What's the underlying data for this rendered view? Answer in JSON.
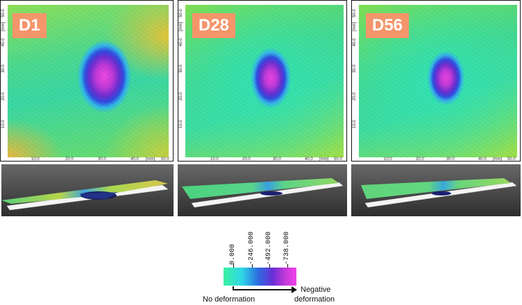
{
  "panels": [
    {
      "label": "D1",
      "y_ticks": [
        "50.0",
        "[mm]",
        "40.0",
        "30.0",
        "20.0",
        "10.0"
      ],
      "x_ticks": [
        "10.0",
        "20.0",
        "30.0",
        "40.0",
        "[mm]",
        "50.0"
      ]
    },
    {
      "label": "D28",
      "y_ticks": [
        "50.0",
        "[mm]",
        "40.0",
        "30.0",
        "20.0",
        "10.0"
      ],
      "x_ticks": [
        "10.0",
        "20.0",
        "30.0",
        "40.0",
        "[mm]",
        "50.0"
      ]
    },
    {
      "label": "D56",
      "y_ticks": [
        "50.0",
        "[mm]",
        "40.0",
        "30.0",
        "20.0",
        "10.0"
      ],
      "x_ticks": [
        "10.0",
        "20.0",
        "30.0",
        "40.0",
        "[mm]",
        "50.0"
      ]
    }
  ],
  "legend": {
    "values": [
      "0.000",
      "-246.000",
      "-492.000",
      "-738.000"
    ],
    "left_caption": "No deformation",
    "right_caption_line1": "Negative",
    "right_caption_line2": "deformation",
    "colors": [
      "#3bf0a0",
      "#2fd8e8",
      "#2e6ae0",
      "#6a2ed6",
      "#c23ad8",
      "#f040e8"
    ]
  }
}
